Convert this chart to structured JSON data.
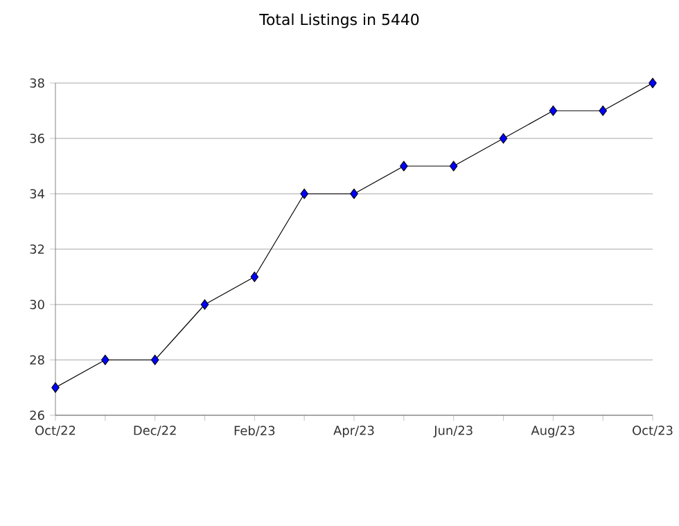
{
  "chart_data": {
    "type": "line",
    "title": "Total Listings in 5440",
    "categories": [
      "Oct/22",
      null,
      "Dec/22",
      null,
      "Feb/23",
      null,
      "Apr/23",
      null,
      "Jun/23",
      null,
      "Aug/23",
      null,
      "Oct/23"
    ],
    "series": [
      {
        "color": "#0000ff",
        "values": [
          27,
          28,
          28,
          30,
          31,
          34,
          34,
          35,
          35,
          36,
          37,
          37,
          38
        ]
      }
    ],
    "ylim": [
      26,
      38
    ],
    "yticks": [
      26,
      28,
      30,
      32,
      34,
      36,
      38
    ],
    "grid": "y",
    "marker": "diamond",
    "line_style": "solid"
  }
}
